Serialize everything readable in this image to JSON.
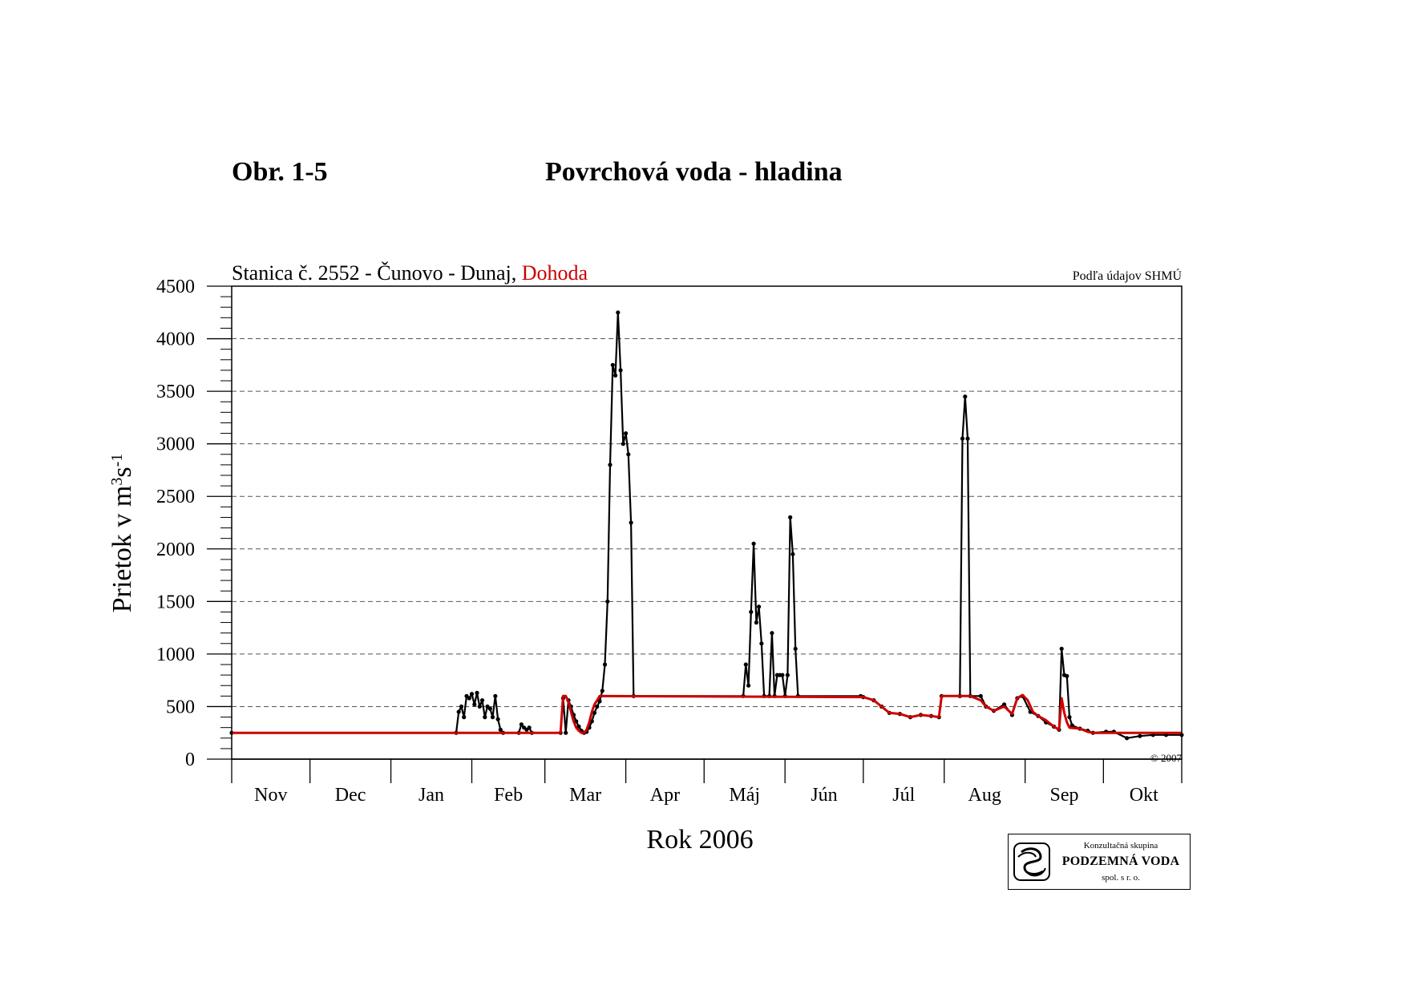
{
  "header": {
    "figure_label": "Obr. 1-5",
    "figure_title": "Povrchová voda - hladina"
  },
  "chart_data": {
    "type": "line",
    "title_main": "Stanica č. 2552 - Čunovo - Dunaj, ",
    "title_agreement": "Dohoda",
    "source_note": "Podľa údajov SHMÚ",
    "copyright": "© 2007",
    "ylabel_main": "Prietok v m",
    "ylabel_sup1": "3",
    "ylabel_mid": "s",
    "ylabel_sup2": "-1",
    "xlabel": "Rok 2006",
    "ylim": [
      0,
      4500
    ],
    "yticks": [
      "0",
      "500",
      "1000",
      "1500",
      "2000",
      "2500",
      "3000",
      "3500",
      "4000",
      "4500"
    ],
    "grid": "horizontal dashed",
    "months": [
      "Nov",
      "Dec",
      "Jan",
      "Feb",
      "Mar",
      "Apr",
      "Máj",
      "Jún",
      "Júl",
      "Aug",
      "Sep",
      "Okt"
    ],
    "month_days": [
      30,
      31,
      31,
      28,
      31,
      30,
      31,
      30,
      31,
      31,
      30,
      31
    ],
    "x_start": "1 Nov 2005",
    "x_end": "31 Okt 2006",
    "series": [
      {
        "name": "Prietok",
        "color": "#000000",
        "points": [
          [
            "1 Nov",
            250
          ],
          [
            "26 Jan",
            250
          ],
          [
            "27 Jan",
            450
          ],
          [
            "28 Jan",
            500
          ],
          [
            "29 Jan",
            400
          ],
          [
            "30 Jan",
            600
          ],
          [
            "31 Jan",
            580
          ],
          [
            "1 Feb",
            620
          ],
          [
            "2 Feb",
            520
          ],
          [
            "3 Feb",
            630
          ],
          [
            "4 Feb",
            500
          ],
          [
            "5 Feb",
            560
          ],
          [
            "6 Feb",
            400
          ],
          [
            "7 Feb",
            500
          ],
          [
            "8 Feb",
            480
          ],
          [
            "9 Feb",
            400
          ],
          [
            "10 Feb",
            600
          ],
          [
            "11 Feb",
            380
          ],
          [
            "12 Feb",
            280
          ],
          [
            "13 Feb",
            250
          ],
          [
            "19 Feb",
            250
          ],
          [
            "20 Feb",
            330
          ],
          [
            "21 Feb",
            300
          ],
          [
            "22 Feb",
            280
          ],
          [
            "23 Feb",
            300
          ],
          [
            "24 Feb",
            250
          ],
          [
            "7 Mar",
            250
          ],
          [
            "8 Mar",
            580
          ],
          [
            "9 Mar",
            250
          ],
          [
            "10 Mar",
            560
          ],
          [
            "11 Mar",
            500
          ],
          [
            "12 Mar",
            420
          ],
          [
            "13 Mar",
            360
          ],
          [
            "14 Mar",
            310
          ],
          [
            "15 Mar",
            270
          ],
          [
            "16 Mar",
            250
          ],
          [
            "17 Mar",
            260
          ],
          [
            "18 Mar",
            300
          ],
          [
            "19 Mar",
            360
          ],
          [
            "20 Mar",
            440
          ],
          [
            "21 Mar",
            500
          ],
          [
            "22 Mar",
            550
          ],
          [
            "23 Mar",
            650
          ],
          [
            "24 Mar",
            900
          ],
          [
            "25 Mar",
            1500
          ],
          [
            "26 Mar",
            2800
          ],
          [
            "27 Mar",
            3750
          ],
          [
            "28 Mar",
            3650
          ],
          [
            "29 Mar",
            4250
          ],
          [
            "30 Mar",
            3700
          ],
          [
            "31 Mar",
            3000
          ],
          [
            "1 Apr",
            3100
          ],
          [
            "2 Apr",
            2900
          ],
          [
            "3 Apr",
            2250
          ],
          [
            "4 Apr",
            600
          ],
          [
            "16 Máj",
            600
          ],
          [
            "17 Máj",
            900
          ],
          [
            "18 Máj",
            700
          ],
          [
            "19 Máj",
            1400
          ],
          [
            "20 Máj",
            2050
          ],
          [
            "21 Máj",
            1300
          ],
          [
            "22 Máj",
            1450
          ],
          [
            "23 Máj",
            1100
          ],
          [
            "24 Máj",
            600
          ],
          [
            "26 Máj",
            600
          ],
          [
            "27 Máj",
            1200
          ],
          [
            "28 Máj",
            600
          ],
          [
            "29 Máj",
            800
          ],
          [
            "30 Máj",
            800
          ],
          [
            "31 Máj",
            800
          ],
          [
            "1 Jún",
            600
          ],
          [
            "2 Jún",
            800
          ],
          [
            "3 Jún",
            2300
          ],
          [
            "4 Jún",
            1950
          ],
          [
            "5 Jún",
            1050
          ],
          [
            "6 Jún",
            600
          ],
          [
            "30 Jún",
            600
          ],
          [
            "1 Júl",
            590
          ],
          [
            "5 Júl",
            560
          ],
          [
            "8 Júl",
            500
          ],
          [
            "11 Júl",
            440
          ],
          [
            "15 Júl",
            430
          ],
          [
            "19 Júl",
            400
          ],
          [
            "23 Júl",
            420
          ],
          [
            "27 Júl",
            410
          ],
          [
            "30 Júl",
            400
          ],
          [
            "31 Júl",
            600
          ],
          [
            "7 Aug",
            600
          ],
          [
            "8 Aug",
            3050
          ],
          [
            "9 Aug",
            3450
          ],
          [
            "10 Aug",
            3050
          ],
          [
            "11 Aug",
            600
          ],
          [
            "15 Aug",
            600
          ],
          [
            "17 Aug",
            500
          ],
          [
            "20 Aug",
            460
          ],
          [
            "24 Aug",
            520
          ],
          [
            "27 Aug",
            420
          ],
          [
            "29 Aug",
            580
          ],
          [
            "31 Aug",
            600
          ],
          [
            "3 Sep",
            450
          ],
          [
            "6 Sep",
            410
          ],
          [
            "9 Sep",
            350
          ],
          [
            "12 Sep",
            310
          ],
          [
            "14 Sep",
            280
          ],
          [
            "15 Sep",
            1050
          ],
          [
            "16 Sep",
            800
          ],
          [
            "17 Sep",
            790
          ],
          [
            "18 Sep",
            400
          ],
          [
            "19 Sep",
            320
          ],
          [
            "22 Sep",
            290
          ],
          [
            "25 Sep",
            270
          ],
          [
            "27 Sep",
            250
          ],
          [
            "2 Okt",
            260
          ],
          [
            "5 Okt",
            260
          ],
          [
            "10 Okt",
            200
          ],
          [
            "15 Okt",
            220
          ],
          [
            "20 Okt",
            230
          ],
          [
            "25 Okt",
            230
          ],
          [
            "31 Okt",
            230
          ]
        ]
      },
      {
        "name": "Dohoda",
        "color": "#cc0000",
        "points": [
          [
            "1 Nov",
            250
          ],
          [
            "7 Mar",
            250
          ],
          [
            "8 Mar",
            600
          ],
          [
            "9 Mar",
            600
          ],
          [
            "10 Mar",
            550
          ],
          [
            "11 Mar",
            450
          ],
          [
            "12 Mar",
            360
          ],
          [
            "13 Mar",
            300
          ],
          [
            "14 Mar",
            270
          ],
          [
            "15 Mar",
            250
          ],
          [
            "16 Mar",
            250
          ],
          [
            "17 Mar",
            280
          ],
          [
            "18 Mar",
            350
          ],
          [
            "19 Mar",
            450
          ],
          [
            "20 Mar",
            520
          ],
          [
            "21 Mar",
            560
          ],
          [
            "22 Mar",
            600
          ],
          [
            "1 Júl",
            590
          ],
          [
            "5 Júl",
            560
          ],
          [
            "8 Júl",
            500
          ],
          [
            "11 Júl",
            440
          ],
          [
            "15 Júl",
            430
          ],
          [
            "19 Júl",
            400
          ],
          [
            "23 Júl",
            420
          ],
          [
            "27 Júl",
            410
          ],
          [
            "30 Júl",
            400
          ],
          [
            "31 Júl",
            600
          ],
          [
            "11 Aug",
            600
          ],
          [
            "15 Aug",
            560
          ],
          [
            "17 Aug",
            500
          ],
          [
            "20 Aug",
            460
          ],
          [
            "24 Aug",
            500
          ],
          [
            "27 Aug",
            430
          ],
          [
            "29 Aug",
            580
          ],
          [
            "31 Aug",
            610
          ],
          [
            "2 Sep",
            560
          ],
          [
            "4 Sep",
            450
          ],
          [
            "6 Sep",
            410
          ],
          [
            "9 Sep",
            370
          ],
          [
            "12 Sep",
            310
          ],
          [
            "14 Sep",
            280
          ],
          [
            "15 Sep",
            580
          ],
          [
            "16 Sep",
            440
          ],
          [
            "17 Sep",
            350
          ],
          [
            "18 Sep",
            300
          ],
          [
            "22 Sep",
            290
          ],
          [
            "25 Sep",
            260
          ],
          [
            "27 Sep",
            250
          ],
          [
            "2 Okt",
            250
          ],
          [
            "31 Okt",
            250
          ]
        ]
      }
    ]
  },
  "logo": {
    "top_text": "Konzultačná skupina",
    "main_text": "PODZEMNÁ VODA",
    "bottom_text": "spol. s r. o."
  }
}
